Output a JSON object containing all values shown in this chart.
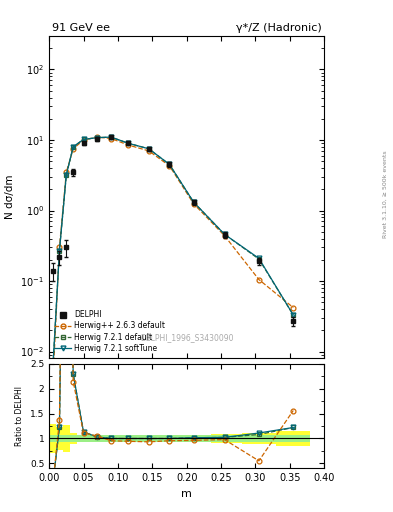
{
  "title_left": "91 GeV ee",
  "title_right": "γ*/Z (Hadronic)",
  "ylabel_main": "N dσ/dm",
  "ylabel_ratio": "Ratio to DELPHI",
  "xlabel": "m",
  "right_label": "Rivet 3.1.10, ≥ 500k events",
  "watermark": "DELPHI_1996_S3430090",
  "delphi_x": [
    0.005,
    0.015,
    0.025,
    0.035,
    0.05,
    0.07,
    0.09,
    0.115,
    0.145,
    0.175,
    0.21,
    0.255,
    0.305,
    0.355
  ],
  "delphi_y": [
    0.14,
    0.22,
    0.3,
    3.5,
    9.0,
    10.5,
    11.0,
    9.0,
    7.5,
    4.5,
    1.3,
    0.45,
    0.19,
    0.027
  ],
  "delphi_yerr_lo": [
    0.04,
    0.05,
    0.08,
    0.4,
    0.6,
    0.7,
    0.7,
    0.6,
    0.5,
    0.3,
    0.1,
    0.04,
    0.02,
    0.004
  ],
  "delphi_yerr_hi": [
    0.04,
    0.05,
    0.08,
    0.4,
    0.6,
    0.7,
    0.7,
    0.6,
    0.5,
    0.3,
    0.1,
    0.04,
    0.02,
    0.004
  ],
  "hw_x": [
    0.005,
    0.015,
    0.025,
    0.035,
    0.05,
    0.07,
    0.09,
    0.115,
    0.145,
    0.175,
    0.21,
    0.255,
    0.305,
    0.355
  ],
  "hwpp_y": [
    0.003,
    0.3,
    3.5,
    7.5,
    10.0,
    11.0,
    10.5,
    8.5,
    7.0,
    4.3,
    1.25,
    0.44,
    0.105,
    0.042
  ],
  "hw721_y": [
    0.005,
    0.27,
    3.2,
    8.0,
    10.2,
    10.8,
    11.0,
    9.0,
    7.5,
    4.5,
    1.32,
    0.46,
    0.205,
    0.033
  ],
  "hw721soft_y": [
    0.005,
    0.27,
    3.2,
    8.0,
    10.2,
    10.8,
    11.0,
    9.0,
    7.5,
    4.5,
    1.32,
    0.46,
    0.21,
    0.033
  ],
  "ratio_hwpp": [
    0.02,
    1.36,
    11.7,
    2.14,
    1.11,
    1.05,
    0.955,
    0.944,
    0.933,
    0.956,
    0.962,
    0.978,
    0.553,
    1.56
  ],
  "ratio_hw721": [
    0.04,
    1.23,
    10.7,
    2.29,
    1.13,
    1.03,
    1.0,
    1.0,
    1.0,
    1.0,
    1.015,
    1.022,
    1.08,
    1.22
  ],
  "ratio_hw721soft": [
    0.04,
    1.23,
    10.7,
    2.29,
    1.13,
    1.03,
    1.0,
    1.0,
    1.0,
    1.0,
    1.015,
    1.022,
    1.11,
    1.22
  ],
  "err_band_lo": [
    0.71,
    0.77,
    0.73,
    0.89,
    0.933,
    0.933,
    0.936,
    0.933,
    0.933,
    0.933,
    0.923,
    0.911,
    0.895,
    0.85
  ],
  "err_band_hi": [
    1.29,
    1.23,
    1.27,
    1.11,
    1.067,
    1.067,
    1.064,
    1.067,
    1.067,
    1.067,
    1.077,
    1.089,
    1.105,
    1.15
  ],
  "color_delphi": "#111111",
  "color_hwpp": "#cc6600",
  "color_hw721": "#336633",
  "color_hw721soft": "#006677",
  "xlim": [
    0.0,
    0.4
  ],
  "ylim_main": [
    0.008,
    300
  ],
  "ylim_ratio": [
    0.4,
    2.5
  ]
}
